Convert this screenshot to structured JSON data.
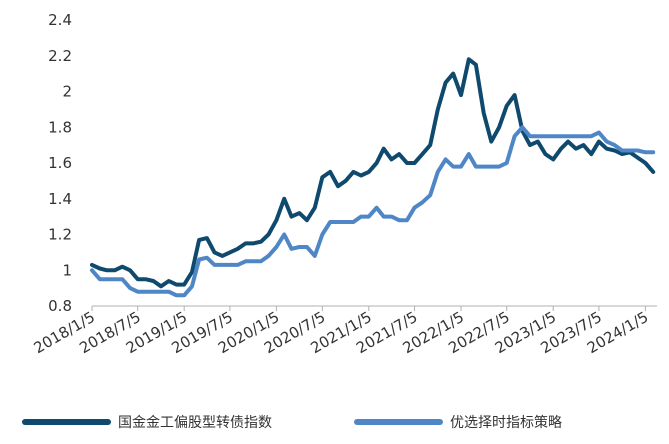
{
  "chart_data": {
    "type": "line",
    "title": "",
    "xlabel": "",
    "ylabel": "",
    "ylim": [
      0.8,
      2.4
    ],
    "yticks": [
      "0.8",
      "1",
      "1.2",
      "1.4",
      "1.6",
      "1.8",
      "2",
      "2.2",
      "2.4"
    ],
    "xticks": [
      "2018/1/5",
      "2018/7/5",
      "2019/1/5",
      "2019/7/5",
      "2020/1/5",
      "2020/7/5",
      "2021/1/5",
      "2021/7/5",
      "2022/1/5",
      "2022/7/5",
      "2023/1/5",
      "2023/7/5",
      "2024/1/5"
    ],
    "grid": false,
    "legend": "bottom",
    "series": [
      {
        "name": "国金金工偏股型转债指数",
        "color": "#0f4a6e",
        "points": [
          [
            "2018/1/5",
            1.03
          ],
          [
            "2018/2/5",
            1.01
          ],
          [
            "2018/3/5",
            1.0
          ],
          [
            "2018/4/5",
            1.0
          ],
          [
            "2018/5/5",
            1.02
          ],
          [
            "2018/6/5",
            1.0
          ],
          [
            "2018/7/5",
            0.95
          ],
          [
            "2018/8/5",
            0.95
          ],
          [
            "2018/9/5",
            0.94
          ],
          [
            "2018/10/5",
            0.91
          ],
          [
            "2018/11/5",
            0.94
          ],
          [
            "2018/12/5",
            0.92
          ],
          [
            "2019/1/5",
            0.92
          ],
          [
            "2019/2/5",
            0.99
          ],
          [
            "2019/3/5",
            1.17
          ],
          [
            "2019/4/5",
            1.18
          ],
          [
            "2019/5/5",
            1.1
          ],
          [
            "2019/6/5",
            1.08
          ],
          [
            "2019/7/5",
            1.1
          ],
          [
            "2019/8/5",
            1.12
          ],
          [
            "2019/9/5",
            1.15
          ],
          [
            "2019/10/5",
            1.15
          ],
          [
            "2019/11/5",
            1.16
          ],
          [
            "2019/12/5",
            1.2
          ],
          [
            "2020/1/5",
            1.28
          ],
          [
            "2020/2/5",
            1.4
          ],
          [
            "2020/3/5",
            1.3
          ],
          [
            "2020/4/5",
            1.32
          ],
          [
            "2020/5/5",
            1.28
          ],
          [
            "2020/6/5",
            1.35
          ],
          [
            "2020/7/5",
            1.52
          ],
          [
            "2020/8/5",
            1.55
          ],
          [
            "2020/9/5",
            1.47
          ],
          [
            "2020/10/5",
            1.5
          ],
          [
            "2020/11/5",
            1.55
          ],
          [
            "2020/12/5",
            1.53
          ],
          [
            "2021/1/5",
            1.55
          ],
          [
            "2021/2/5",
            1.6
          ],
          [
            "2021/3/5",
            1.68
          ],
          [
            "2021/4/5",
            1.62
          ],
          [
            "2021/5/5",
            1.65
          ],
          [
            "2021/6/5",
            1.6
          ],
          [
            "2021/7/5",
            1.6
          ],
          [
            "2021/8/5",
            1.65
          ],
          [
            "2021/9/5",
            1.7
          ],
          [
            "2021/10/5",
            1.9
          ],
          [
            "2021/11/5",
            2.05
          ],
          [
            "2021/12/5",
            2.1
          ],
          [
            "2022/1/5",
            1.98
          ],
          [
            "2022/2/5",
            2.18
          ],
          [
            "2022/3/5",
            2.15
          ],
          [
            "2022/4/5",
            1.88
          ],
          [
            "2022/5/5",
            1.72
          ],
          [
            "2022/6/5",
            1.8
          ],
          [
            "2022/7/5",
            1.92
          ],
          [
            "2022/8/5",
            1.98
          ],
          [
            "2022/9/5",
            1.78
          ],
          [
            "2022/10/5",
            1.7
          ],
          [
            "2022/11/5",
            1.72
          ],
          [
            "2022/12/5",
            1.65
          ],
          [
            "2023/1/5",
            1.62
          ],
          [
            "2023/2/5",
            1.68
          ],
          [
            "2023/3/5",
            1.72
          ],
          [
            "2023/4/5",
            1.68
          ],
          [
            "2023/5/5",
            1.7
          ],
          [
            "2023/6/5",
            1.65
          ],
          [
            "2023/7/5",
            1.72
          ],
          [
            "2023/8/5",
            1.68
          ],
          [
            "2023/9/5",
            1.67
          ],
          [
            "2023/10/5",
            1.65
          ],
          [
            "2023/11/5",
            1.66
          ],
          [
            "2023/12/5",
            1.63
          ],
          [
            "2024/1/5",
            1.6
          ],
          [
            "2024/2/5",
            1.55
          ]
        ]
      },
      {
        "name": "优选择时指标策略",
        "color": "#4f86c6",
        "points": [
          [
            "2018/1/5",
            1.0
          ],
          [
            "2018/2/5",
            0.95
          ],
          [
            "2018/3/5",
            0.95
          ],
          [
            "2018/4/5",
            0.95
          ],
          [
            "2018/5/5",
            0.95
          ],
          [
            "2018/6/5",
            0.9
          ],
          [
            "2018/7/5",
            0.88
          ],
          [
            "2018/8/5",
            0.88
          ],
          [
            "2018/9/5",
            0.88
          ],
          [
            "2018/10/5",
            0.88
          ],
          [
            "2018/11/5",
            0.88
          ],
          [
            "2018/12/5",
            0.86
          ],
          [
            "2019/1/5",
            0.86
          ],
          [
            "2019/2/5",
            0.91
          ],
          [
            "2019/3/5",
            1.06
          ],
          [
            "2019/4/5",
            1.07
          ],
          [
            "2019/5/5",
            1.03
          ],
          [
            "2019/6/5",
            1.03
          ],
          [
            "2019/7/5",
            1.03
          ],
          [
            "2019/8/5",
            1.03
          ],
          [
            "2019/9/5",
            1.05
          ],
          [
            "2019/10/5",
            1.05
          ],
          [
            "2019/11/5",
            1.05
          ],
          [
            "2019/12/5",
            1.08
          ],
          [
            "2020/1/5",
            1.13
          ],
          [
            "2020/2/5",
            1.2
          ],
          [
            "2020/3/5",
            1.12
          ],
          [
            "2020/4/5",
            1.13
          ],
          [
            "2020/5/5",
            1.13
          ],
          [
            "2020/6/5",
            1.08
          ],
          [
            "2020/7/5",
            1.2
          ],
          [
            "2020/8/5",
            1.27
          ],
          [
            "2020/9/5",
            1.27
          ],
          [
            "2020/10/5",
            1.27
          ],
          [
            "2020/11/5",
            1.27
          ],
          [
            "2020/12/5",
            1.3
          ],
          [
            "2021/1/5",
            1.3
          ],
          [
            "2021/2/5",
            1.35
          ],
          [
            "2021/3/5",
            1.3
          ],
          [
            "2021/4/5",
            1.3
          ],
          [
            "2021/5/5",
            1.28
          ],
          [
            "2021/6/5",
            1.28
          ],
          [
            "2021/7/5",
            1.35
          ],
          [
            "2021/8/5",
            1.38
          ],
          [
            "2021/9/5",
            1.42
          ],
          [
            "2021/10/5",
            1.55
          ],
          [
            "2021/11/5",
            1.62
          ],
          [
            "2021/12/5",
            1.58
          ],
          [
            "2022/1/5",
            1.58
          ],
          [
            "2022/2/5",
            1.65
          ],
          [
            "2022/3/5",
            1.58
          ],
          [
            "2022/4/5",
            1.58
          ],
          [
            "2022/5/5",
            1.58
          ],
          [
            "2022/6/5",
            1.58
          ],
          [
            "2022/7/5",
            1.6
          ],
          [
            "2022/8/5",
            1.75
          ],
          [
            "2022/9/5",
            1.8
          ],
          [
            "2022/10/5",
            1.75
          ],
          [
            "2022/11/5",
            1.75
          ],
          [
            "2022/12/5",
            1.75
          ],
          [
            "2023/1/5",
            1.75
          ],
          [
            "2023/2/5",
            1.75
          ],
          [
            "2023/3/5",
            1.75
          ],
          [
            "2023/4/5",
            1.75
          ],
          [
            "2023/5/5",
            1.75
          ],
          [
            "2023/6/5",
            1.75
          ],
          [
            "2023/7/5",
            1.77
          ],
          [
            "2023/8/5",
            1.72
          ],
          [
            "2023/9/5",
            1.7
          ],
          [
            "2023/10/5",
            1.67
          ],
          [
            "2023/11/5",
            1.67
          ],
          [
            "2023/12/5",
            1.67
          ],
          [
            "2024/1/5",
            1.66
          ],
          [
            "2024/2/5",
            1.66
          ]
        ]
      }
    ]
  }
}
